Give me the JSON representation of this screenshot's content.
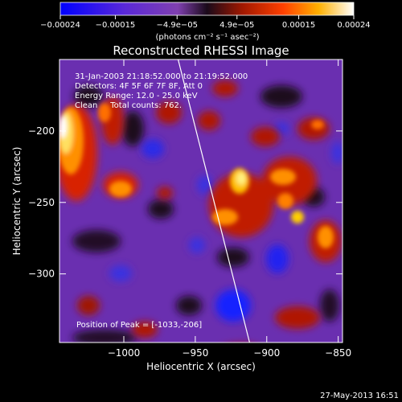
{
  "chart_data": {
    "type": "heatmap",
    "title": "Reconstructed RHESSI Image",
    "xlabel": "Heliocentric X (arcsec)",
    "ylabel": "Heliocentric Y (arcsec)",
    "xlim": [
      -1045,
      -847
    ],
    "ylim": [
      -348,
      -150
    ],
    "x_ticks": [
      -1000,
      -950,
      -900,
      -850
    ],
    "x_tick_labels": [
      "−1000",
      "−950",
      "−900",
      "−850"
    ],
    "y_ticks": [
      -200,
      -250,
      -300
    ],
    "y_tick_labels": [
      "−200",
      "−250",
      "−300"
    ],
    "colorbar": {
      "colormap": "blue-purple-red-yellow-white",
      "range": [
        -0.00024,
        0.00024
      ],
      "ticks": [
        -0.00024,
        -0.00015,
        -4.9e-05,
        4.9e-05,
        0.00015,
        0.00024
      ],
      "tick_labels": [
        "−0.00024",
        "−0.00015",
        "−4.9e−05",
        "4.9e−05",
        "0.00015",
        "0.00024"
      ],
      "units": "(photons cm⁻² s⁻¹ asec⁻²)"
    },
    "annotations": {
      "time_range": "31-Jan-2003 21:18:52.000 to 21:19:52.000",
      "detectors": "Detectors: 4F 5F 6F 7F 8F, Att 0",
      "energy_range": "Energy Range: 12.0 - 25.0 keV",
      "clean_counts": "Clean     Total counts: 762.",
      "peak_position": "Position of Peak = [-1033,-206]"
    },
    "limb_line": {
      "x": [
        -962,
        -912
      ],
      "y": [
        -150,
        -348
      ]
    },
    "colors": {
      "background": "#000000",
      "text": "#ffffff",
      "limb": "#ffffff",
      "neg_strong": "#0000ff",
      "neg_mid": "#7a3cc8",
      "zero": "#1a0a1a",
      "pos_mid": "#e02800",
      "pos_high": "#ffd000",
      "pos_max": "#ffffff"
    }
  },
  "footer": {
    "timestamp": "27-May-2013 16:51"
  }
}
